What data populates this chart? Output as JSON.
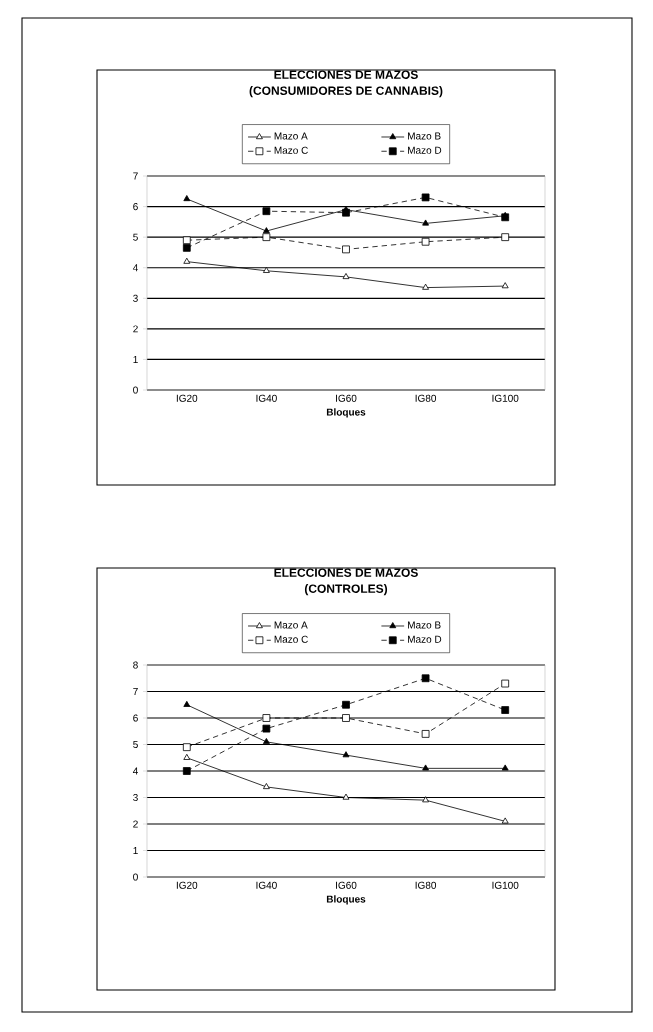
{
  "chart_data": [
    {
      "type": "line",
      "title": "ELECCIONES DE MAZOS",
      "subtitle": "(CONSUMIDORES DE CANNABIS)",
      "xlabel": "Bloques",
      "categories": [
        "IG20",
        "IG40",
        "IG60",
        "IG80",
        "IG100"
      ],
      "series": [
        {
          "name": "Mazo A",
          "color": "#000000",
          "marker": "triangle",
          "line_style": "solid",
          "values": [
            4.2,
            3.9,
            3.7,
            3.35,
            3.4
          ]
        },
        {
          "name": "Mazo B",
          "color": "#000000",
          "marker": "triangle",
          "line_style": "solid",
          "values": [
            6.25,
            5.2,
            5.9,
            5.45,
            5.7
          ]
        },
        {
          "name": "Mazo C",
          "color": "#000000",
          "marker": "square",
          "line_style": "dashed",
          "values": [
            4.9,
            5.0,
            4.6,
            4.85,
            5.0
          ]
        },
        {
          "name": "Mazo D",
          "color": "#000000",
          "marker": "square",
          "line_style": "dashed",
          "values": [
            4.65,
            5.85,
            5.8,
            6.3,
            5.65
          ]
        }
      ],
      "ylim": [
        0,
        7
      ],
      "yticks": [
        0,
        1,
        2,
        3,
        4,
        5,
        6,
        7
      ],
      "grid": "y",
      "legend": "top"
    },
    {
      "type": "line",
      "title": "ELECCIONES DE MAZOS",
      "subtitle": "(CONTROLES)",
      "xlabel": "Bloques",
      "categories": [
        "IG20",
        "IG40",
        "IG60",
        "IG80",
        "IG100"
      ],
      "series": [
        {
          "name": "Mazo A",
          "color": "#000000",
          "marker": "triangle",
          "line_style": "solid",
          "values": [
            4.5,
            3.4,
            3.0,
            2.9,
            2.1
          ]
        },
        {
          "name": "Mazo B",
          "color": "#000000",
          "marker": "triangle",
          "line_style": "solid",
          "values": [
            6.5,
            5.1,
            4.6,
            4.1,
            4.1
          ]
        },
        {
          "name": "Mazo C",
          "color": "#000000",
          "marker": "square",
          "line_style": "dashed",
          "values": [
            4.9,
            6.0,
            6.0,
            5.4,
            7.3
          ]
        },
        {
          "name": "Mazo D",
          "color": "#000000",
          "marker": "square",
          "line_style": "dashed",
          "values": [
            4.0,
            5.6,
            6.5,
            7.5,
            6.3
          ]
        }
      ],
      "ylim": [
        0,
        8
      ],
      "yticks": [
        0,
        1,
        2,
        3,
        4,
        5,
        6,
        7,
        8
      ],
      "grid": "y",
      "legend": "top"
    }
  ]
}
